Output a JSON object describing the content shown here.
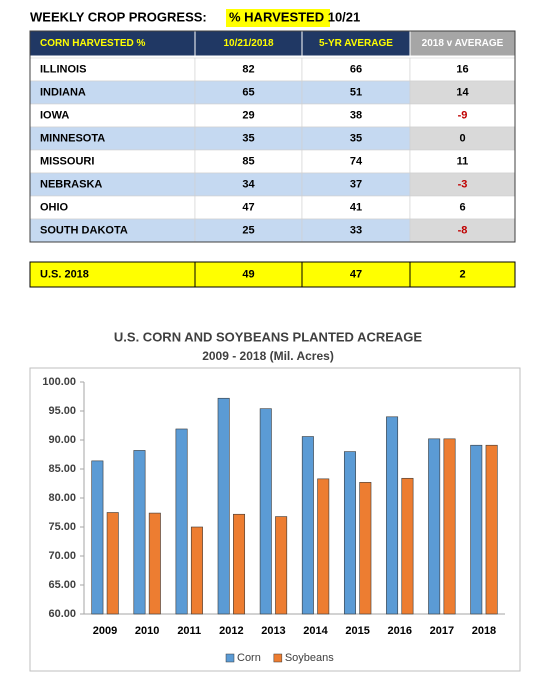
{
  "header": {
    "title": "WEEKLY CROP PROGRESS:",
    "highlight": "% HARVESTED 10/21"
  },
  "table": {
    "columns": [
      "CORN HARVESTED %",
      "10/21/2018",
      "5-YR AVERAGE",
      "2018 v AVERAGE"
    ],
    "rows": [
      [
        "ILLINOIS",
        82,
        66,
        16
      ],
      [
        "INDIANA",
        65,
        51,
        14
      ],
      [
        "IOWA",
        29,
        38,
        -9
      ],
      [
        "MINNESOTA",
        35,
        35,
        0
      ],
      [
        "MISSOURI",
        85,
        74,
        11
      ],
      [
        "NEBRASKA",
        34,
        37,
        -3
      ],
      [
        "OHIO",
        47,
        41,
        6
      ],
      [
        "SOUTH DAKOTA",
        25,
        33,
        -8
      ]
    ],
    "total": [
      "U.S. 2018",
      49,
      47,
      2
    ]
  },
  "chart_data": {
    "type": "bar",
    "title": "U.S. CORN AND SOYBEANS PLANTED ACREAGE",
    "subtitle": "2009 - 2018 (Mil. Acres)",
    "categories": [
      "2009",
      "2010",
      "2011",
      "2012",
      "2013",
      "2014",
      "2015",
      "2016",
      "2017",
      "2018"
    ],
    "series": [
      {
        "name": "Corn",
        "color": "#5b9bd5",
        "values": [
          86.4,
          88.2,
          91.9,
          97.2,
          95.4,
          90.6,
          88.0,
          94.0,
          90.2,
          89.1
        ]
      },
      {
        "name": "Soybeans",
        "color": "#ed7d31",
        "values": [
          77.5,
          77.4,
          75.0,
          77.2,
          76.8,
          83.3,
          82.7,
          83.4,
          90.2,
          89.1
        ]
      }
    ],
    "ylim": [
      60,
      100
    ],
    "yticks": [
      {
        "value": 60,
        "label": "60.00"
      },
      {
        "value": 65,
        "label": "65.00"
      },
      {
        "value": 70,
        "label": "70.00"
      },
      {
        "value": 75,
        "label": "75.00"
      },
      {
        "value": 80,
        "label": "80.00"
      },
      {
        "value": 85,
        "label": "85.00"
      },
      {
        "value": 90,
        "label": "90.00"
      },
      {
        "value": 95,
        "label": "95.00"
      },
      {
        "value": 100,
        "label": "100.00"
      }
    ],
    "grid": false,
    "legend": "bottom"
  }
}
